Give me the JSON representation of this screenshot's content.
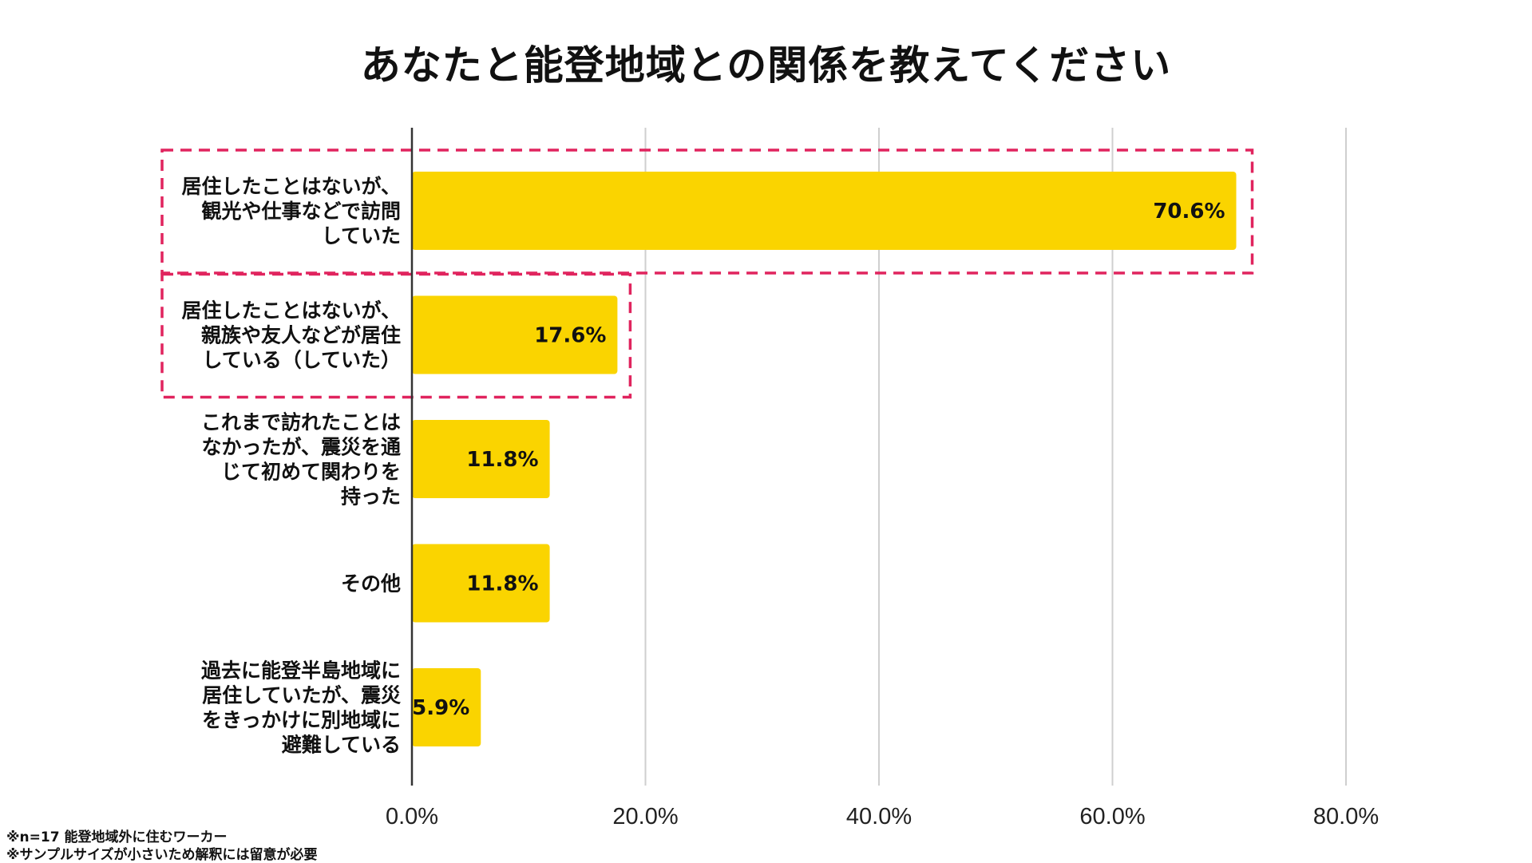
{
  "title": "あなたと能登地域との関係を教えてください",
  "colors": {
    "bar": "#FAD400",
    "highlight_border": "#E0245E",
    "gridline": "#CFCFCF",
    "axis": "#333333"
  },
  "chart_data": {
    "type": "bar",
    "orientation": "horizontal",
    "title": "あなたと能登地域との関係を教えてください",
    "xlim": [
      0,
      80
    ],
    "ticks": [
      0,
      20,
      40,
      60,
      80
    ],
    "tick_labels": [
      "0.0%",
      "20.0%",
      "40.0%",
      "60.0%",
      "80.0%"
    ],
    "grid": true,
    "categories": [
      [
        "居住したことはないが、",
        "観光や仕事などで訪問",
        "していた"
      ],
      [
        "居住したことはないが、",
        "親族や友人などが居住",
        "している（していた）"
      ],
      [
        "これまで訪れたことは",
        "なかったが、震災を通",
        "じて初めて関わりを",
        "持った"
      ],
      [
        "その他"
      ],
      [
        "過去に能登半島地域に",
        "居住していたが、震災",
        "をきっかけに別地域に",
        "避難している"
      ]
    ],
    "values": [
      70.6,
      17.6,
      11.8,
      11.8,
      5.9
    ],
    "data_labels": [
      "70.6%",
      "17.6%",
      "11.8%",
      "11.8%",
      "5.9%"
    ],
    "highlighted": [
      true,
      true,
      false,
      false,
      false
    ]
  },
  "footnotes": [
    "※n=17 能登地域外に住むワーカー",
    "※サンプルサイズが小さいため解釈には留意が必要"
  ]
}
